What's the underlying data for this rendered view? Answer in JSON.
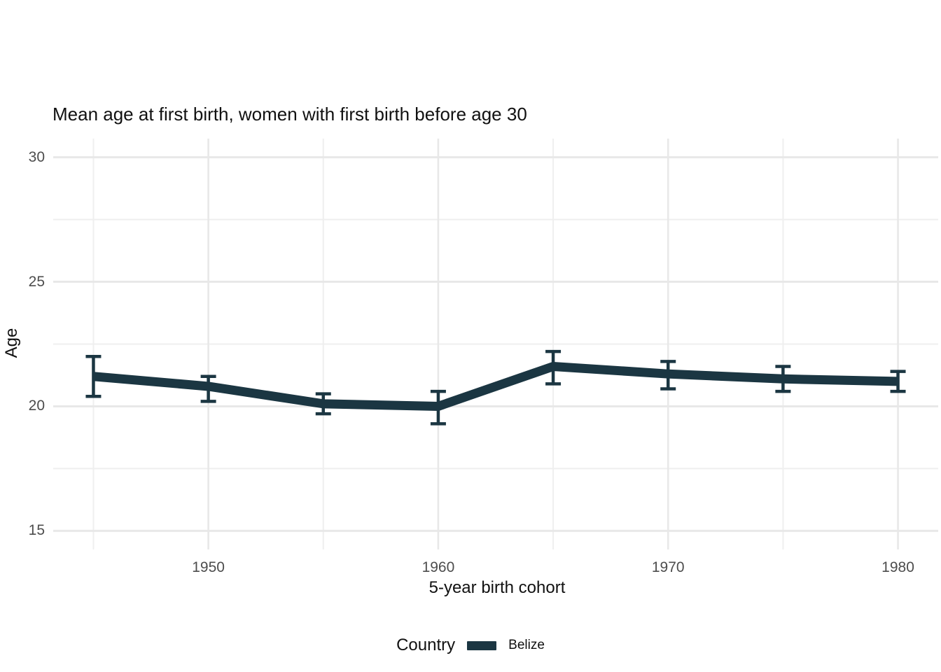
{
  "figure": {
    "title": "Mean age at first birth, women with first birth before age 30",
    "x_axis_title": "5-year birth cohort",
    "y_axis_title": "Age",
    "legend": {
      "title": "Country",
      "series_label": "Belize"
    }
  },
  "chart_data": {
    "type": "line",
    "title": "Mean age at first birth, women with first birth before age 30",
    "xlabel": "5-year birth cohort",
    "ylabel": "Age",
    "legend_title": "Country",
    "legend_position": "bottom",
    "grid": true,
    "error_bars": true,
    "xlim": [
      1943.25,
      1981.75
    ],
    "ylim": [
      14.25,
      30.75
    ],
    "x_ticks": [
      1950,
      1960,
      1970,
      1980
    ],
    "x_minor_ticks": [
      1945,
      1955,
      1965,
      1975
    ],
    "y_ticks": [
      15,
      20,
      25,
      30
    ],
    "y_minor_ticks": [
      17.5,
      22.5,
      27.5
    ],
    "series": [
      {
        "name": "Belize",
        "color": "#1b3642",
        "x": [
          1945,
          1950,
          1955,
          1960,
          1965,
          1970,
          1975,
          1980
        ],
        "y": [
          21.2,
          20.8,
          20.1,
          20.0,
          21.6,
          21.3,
          21.1,
          21.0
        ],
        "ci_low": [
          20.4,
          20.2,
          19.7,
          19.3,
          20.9,
          20.7,
          20.6,
          20.6
        ],
        "ci_high": [
          22.0,
          21.2,
          20.5,
          20.6,
          22.2,
          21.8,
          21.6,
          21.4
        ]
      }
    ]
  },
  "style": {
    "background": "#ffffff",
    "line_color": "#1b3642",
    "grid_major_color": "#e8e8e8",
    "grid_minor_color": "#efefef",
    "tick_label_color": "#4d4d4d",
    "text_color": "#111111"
  }
}
